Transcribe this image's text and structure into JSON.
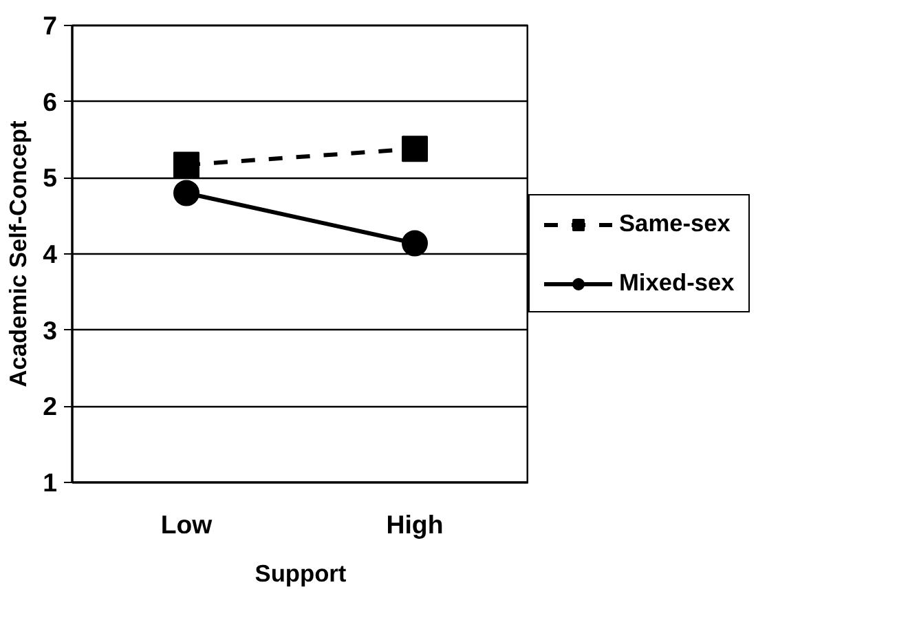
{
  "chart_data": {
    "type": "line",
    "xlabel": "Support",
    "ylabel": "Academic Self-Concept",
    "categories": [
      "Low",
      "High"
    ],
    "series": [
      {
        "name": "Same-sex",
        "color": "#000000",
        "values": [
          5.17,
          5.38
        ],
        "marker": "square",
        "line_style": "dashed"
      },
      {
        "name": "Mixed-sex",
        "color": "#000000",
        "values": [
          4.8,
          4.14
        ],
        "marker": "circle",
        "line_style": "solid"
      }
    ],
    "ylim": [
      1,
      7
    ],
    "yticks": [
      1,
      2,
      3,
      4,
      5,
      6,
      7
    ],
    "grid": "y",
    "legend": "right"
  }
}
